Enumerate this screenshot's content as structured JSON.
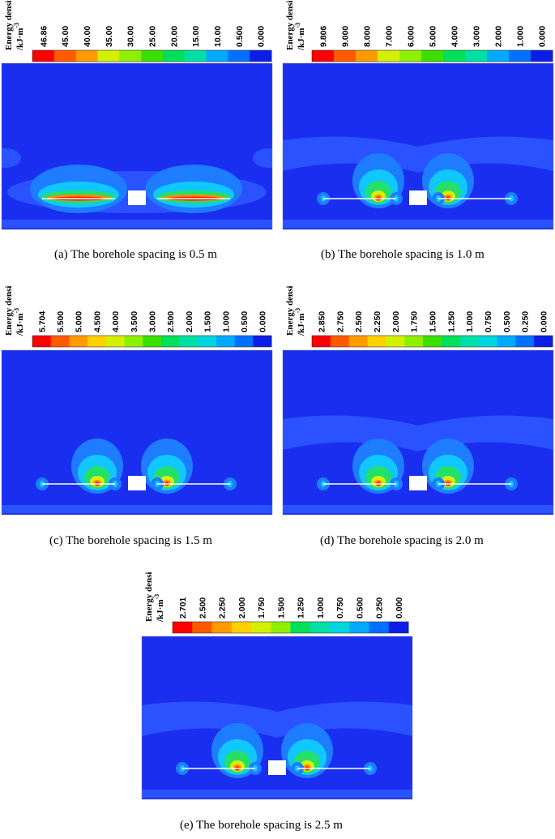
{
  "legend_title_line1": "Energy density",
  "legend_title_line2": "/kJ·m",
  "legend_title_exp": "-3",
  "colors": [
    "#ff0000",
    "#ff5a00",
    "#ff9a00",
    "#ffd000",
    "#d4f000",
    "#8ef000",
    "#3ce000",
    "#00e05a",
    "#00e0a6",
    "#00d6e0",
    "#00aaff",
    "#0070ff",
    "#1a3cff"
  ],
  "background_color": "#1a2ef0",
  "chart_data": [
    {
      "type": "heatmap",
      "caption": "(a) The borehole spacing is 0.5 m",
      "borehole_spacing_m": 0.5,
      "colorbar_ticks": [
        "46.86",
        "45.00",
        "40.00",
        "35.00",
        "30.00",
        "25.00",
        "20.00",
        "15.00",
        "10.00",
        "0.500",
        "0.000"
      ],
      "max_energy_density": 46.86
    },
    {
      "type": "heatmap",
      "caption": "(b) The borehole spacing is 1.0 m",
      "borehole_spacing_m": 1.0,
      "colorbar_ticks": [
        "9.806",
        "9.000",
        "8.000",
        "7.000",
        "6.000",
        "5.000",
        "4.000",
        "3.000",
        "2.000",
        "1.000",
        "0.000"
      ],
      "max_energy_density": 9.806
    },
    {
      "type": "heatmap",
      "caption": "(c) The borehole spacing is 1.5 m",
      "borehole_spacing_m": 1.5,
      "colorbar_ticks": [
        "5.704",
        "5.500",
        "5.000",
        "4.500",
        "4.000",
        "3.500",
        "3.000",
        "2.500",
        "2.000",
        "1.500",
        "1.000",
        "0.500",
        "0.000"
      ],
      "max_energy_density": 5.704
    },
    {
      "type": "heatmap",
      "caption": "(d) The borehole spacing is 2.0 m",
      "borehole_spacing_m": 2.0,
      "colorbar_ticks": [
        "2.850",
        "2.750",
        "2.500",
        "2.250",
        "2.000",
        "1.750",
        "1.500",
        "1.250",
        "1.000",
        "0.750",
        "0.500",
        "0.250",
        "0.000"
      ],
      "max_energy_density": 2.85
    },
    {
      "type": "heatmap",
      "caption": "(e) The borehole spacing is 2.5 m",
      "borehole_spacing_m": 2.5,
      "colorbar_ticks": [
        "2.701",
        "2.500",
        "2.250",
        "2.000",
        "1.750",
        "1.500",
        "1.250",
        "1.000",
        "0.750",
        "0.500",
        "0.250",
        "0.000"
      ],
      "max_energy_density": 2.701
    }
  ]
}
